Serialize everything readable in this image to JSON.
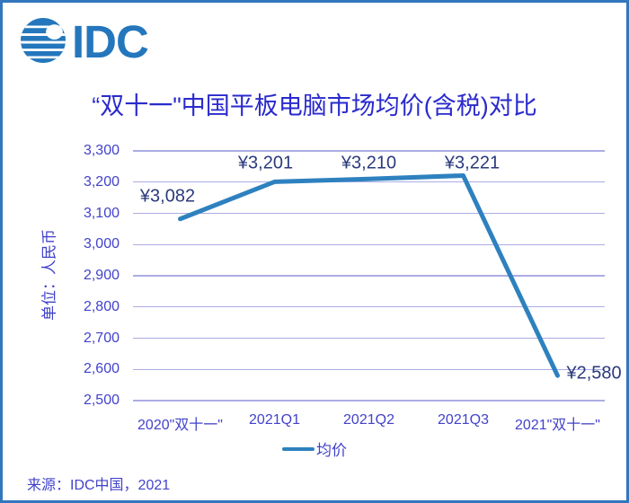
{
  "brand": {
    "logo_text": "IDC",
    "logo_color": "#2477BC"
  },
  "header": {
    "title": "“双十一\"中国平板电脑市场均价(含税)对比"
  },
  "chart_data": {
    "type": "line",
    "title": "“双十一\"中国平板电脑市场均价(含税)对比",
    "ylabel": "单位：人民币",
    "xlabel": "",
    "categories": [
      "2020\"双十一\"",
      "2021Q1",
      "2021Q2",
      "2021Q3",
      "2021\"双十一\""
    ],
    "series": [
      {
        "name": "均价",
        "values": [
          3082,
          3201,
          3210,
          3221,
          2580
        ],
        "data_labels": [
          "¥3,082",
          "¥3,201",
          "¥3,210",
          "¥3,221",
          "¥2,580"
        ],
        "color": "#2E81BF"
      }
    ],
    "ylim": [
      2500,
      3300
    ],
    "ytick_step": 100,
    "ytick_labels": [
      "3,300",
      "3,200",
      "3,100",
      "3,000",
      "2,900",
      "2,800",
      "2,700",
      "2,600",
      "2,500"
    ],
    "ytick_values": [
      3300,
      3200,
      3100,
      3000,
      2900,
      2800,
      2700,
      2600,
      2500
    ],
    "grid": "horizontal-only",
    "legend_position": "bottom",
    "colors": {
      "line": "#2E81BF",
      "grid": "#ACACE4",
      "axis_text": "#4242CB",
      "data_label_text": "#2B3A7D",
      "title_text": "#2A2ACD",
      "frame_border": "#3277BD"
    }
  },
  "footer": {
    "source": "来源：IDC中国，2021"
  }
}
